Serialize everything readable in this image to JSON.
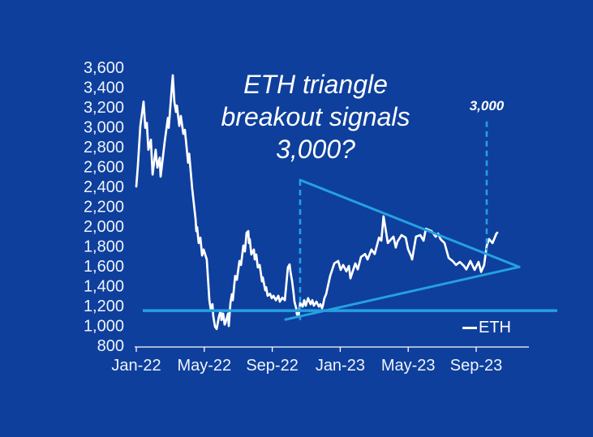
{
  "background_color": "#0E3F9C",
  "accent_color": "#25A0E2",
  "line_color": "#FFFFFF",
  "chart_data": {
    "type": "line",
    "title": "ETH triangle\nbreakout signals\n3,000?",
    "legend": [
      "ETH"
    ],
    "annotations": [
      {
        "label": "3,000",
        "value": 3000,
        "month": 20.62
      }
    ],
    "x_unit": "months since Jan-2022",
    "ylim": [
      800,
      3600
    ],
    "grid": false,
    "legend_position": "bottom-right",
    "x_ticks": [
      {
        "label": "Jan-22",
        "m": 0
      },
      {
        "label": "May-22",
        "m": 4
      },
      {
        "label": "Sep-22",
        "m": 8
      },
      {
        "label": "Jan-23",
        "m": 12
      },
      {
        "label": "May-23",
        "m": 16
      },
      {
        "label": "Sep-23",
        "m": 20
      }
    ],
    "y_ticks": [
      "3,600",
      "3,400",
      "3,200",
      "3,000",
      "2,800",
      "2,600",
      "2,400",
      "2,200",
      "2,000",
      "1,800",
      "1,600",
      "1,400",
      "1,200",
      "1,000",
      "800"
    ],
    "series": [
      {
        "name": "ETH",
        "color": "#FFFFFF",
        "points": [
          [
            0,
            2400
          ],
          [
            0.09,
            2600
          ],
          [
            0.24,
            3010
          ],
          [
            0.43,
            3255
          ],
          [
            0.53,
            2990
          ],
          [
            0.62,
            3040
          ],
          [
            0.71,
            2770
          ],
          [
            0.86,
            2870
          ],
          [
            0.96,
            2520
          ],
          [
            1.14,
            2770
          ],
          [
            1.24,
            2590
          ],
          [
            1.38,
            2690
          ],
          [
            1.43,
            2500
          ],
          [
            1.67,
            2850
          ],
          [
            1.86,
            3090
          ],
          [
            1.91,
            2990
          ],
          [
            2.1,
            3420
          ],
          [
            2.15,
            3520
          ],
          [
            2.24,
            3255
          ],
          [
            2.34,
            3150
          ],
          [
            2.39,
            3215
          ],
          [
            2.53,
            3010
          ],
          [
            2.62,
            3110
          ],
          [
            2.77,
            2930
          ],
          [
            2.86,
            2970
          ],
          [
            3.05,
            2640
          ],
          [
            3.11,
            2730
          ],
          [
            3.29,
            2380
          ],
          [
            3.49,
            2070
          ],
          [
            3.53,
            1950
          ],
          [
            3.58,
            1990
          ],
          [
            3.67,
            1830
          ],
          [
            3.77,
            1885
          ],
          [
            3.87,
            1705
          ],
          [
            3.96,
            1765
          ],
          [
            4.15,
            1665
          ],
          [
            4.3,
            1255
          ],
          [
            4.39,
            1150
          ],
          [
            4.48,
            1215
          ],
          [
            4.53,
            1095
          ],
          [
            4.63,
            990
          ],
          [
            4.73,
            965
          ],
          [
            4.87,
            1095
          ],
          [
            4.97,
            1150
          ],
          [
            5.01,
            1055
          ],
          [
            5.11,
            1120
          ],
          [
            5.2,
            1010
          ],
          [
            5.25,
            1030
          ],
          [
            5.4,
            1120
          ],
          [
            5.44,
            995
          ],
          [
            5.54,
            1230
          ],
          [
            5.63,
            1315
          ],
          [
            5.68,
            1255
          ],
          [
            5.82,
            1500
          ],
          [
            5.92,
            1460
          ],
          [
            6.07,
            1650
          ],
          [
            6.16,
            1610
          ],
          [
            6.3,
            1805
          ],
          [
            6.39,
            1745
          ],
          [
            6.49,
            1935
          ],
          [
            6.59,
            1950
          ],
          [
            6.63,
            1830
          ],
          [
            6.68,
            1870
          ],
          [
            6.77,
            1715
          ],
          [
            6.92,
            1765
          ],
          [
            6.97,
            1665
          ],
          [
            7.06,
            1715
          ],
          [
            7.15,
            1585
          ],
          [
            7.26,
            1610
          ],
          [
            7.4,
            1445
          ],
          [
            7.44,
            1485
          ],
          [
            7.59,
            1355
          ],
          [
            7.64,
            1385
          ],
          [
            7.73,
            1300
          ],
          [
            7.87,
            1320
          ],
          [
            7.97,
            1275
          ],
          [
            8.07,
            1300
          ],
          [
            8.21,
            1255
          ],
          [
            8.36,
            1300
          ],
          [
            8.45,
            1240
          ],
          [
            8.59,
            1280
          ],
          [
            8.74,
            1255
          ],
          [
            8.83,
            1420
          ],
          [
            8.92,
            1585
          ],
          [
            9.02,
            1615
          ],
          [
            9.07,
            1545
          ],
          [
            9.17,
            1445
          ],
          [
            9.26,
            1320
          ],
          [
            9.31,
            1240
          ],
          [
            9.41,
            1175
          ],
          [
            9.45,
            1110
          ],
          [
            9.5,
            1150
          ],
          [
            9.55,
            1095
          ],
          [
            9.64,
            1230
          ],
          [
            9.79,
            1190
          ],
          [
            9.88,
            1255
          ],
          [
            9.97,
            1200
          ],
          [
            10.11,
            1275
          ],
          [
            10.26,
            1215
          ],
          [
            10.36,
            1255
          ],
          [
            10.45,
            1200
          ],
          [
            10.6,
            1240
          ],
          [
            10.74,
            1190
          ],
          [
            10.83,
            1215
          ],
          [
            10.93,
            1175
          ],
          [
            10.98,
            1200
          ],
          [
            11.07,
            1275
          ],
          [
            11.17,
            1315
          ],
          [
            11.41,
            1500
          ],
          [
            11.65,
            1625
          ],
          [
            11.88,
            1650
          ],
          [
            12.03,
            1560
          ],
          [
            12.17,
            1610
          ],
          [
            12.36,
            1545
          ],
          [
            12.51,
            1600
          ],
          [
            12.6,
            1475
          ],
          [
            12.89,
            1625
          ],
          [
            13.03,
            1565
          ],
          [
            13.22,
            1690
          ],
          [
            13.46,
            1720
          ],
          [
            13.61,
            1665
          ],
          [
            13.84,
            1765
          ],
          [
            14.03,
            1720
          ],
          [
            14.28,
            1885
          ],
          [
            14.42,
            1855
          ],
          [
            14.55,
            2100
          ],
          [
            14.8,
            1830
          ],
          [
            15,
            1870
          ],
          [
            15.13,
            1895
          ],
          [
            15.27,
            1785
          ],
          [
            15.37,
            1845
          ],
          [
            15.61,
            1910
          ],
          [
            15.85,
            1885
          ],
          [
            15.99,
            1770
          ],
          [
            16.19,
            1690
          ],
          [
            16.23,
            1665
          ],
          [
            16.46,
            1895
          ],
          [
            16.71,
            1910
          ],
          [
            16.9,
            1855
          ],
          [
            17.04,
            1975
          ],
          [
            17.38,
            1950
          ],
          [
            17.62,
            1895
          ],
          [
            17.76,
            1925
          ],
          [
            17.9,
            1870
          ],
          [
            18.14,
            1830
          ],
          [
            18.38,
            1680
          ],
          [
            18.61,
            1650
          ],
          [
            18.81,
            1610
          ],
          [
            19.04,
            1640
          ],
          [
            19.28,
            1600
          ],
          [
            19.42,
            1565
          ],
          [
            19.66,
            1650
          ],
          [
            19.91,
            1560
          ],
          [
            20.14,
            1640
          ],
          [
            20.29,
            1540
          ],
          [
            20.47,
            1610
          ],
          [
            20.62,
            1805
          ],
          [
            20.76,
            1870
          ],
          [
            20.96,
            1830
          ],
          [
            21.19,
            1925
          ],
          [
            21.24,
            1935
          ]
        ]
      }
    ],
    "overlays": {
      "support_line": {
        "value": 1150,
        "from_m": 0.38,
        "to_m": 24.77
      },
      "trendlines": [
        {
          "name": "descending-resistance",
          "from": [
            9.64,
            2465
          ],
          "to": [
            22.53,
            1590
          ]
        },
        {
          "name": "ascending-support",
          "from": [
            8.78,
            1060
          ],
          "to": [
            22.53,
            1590
          ]
        }
      ],
      "projection_dashes": [
        {
          "m": 9.64,
          "from_value": 2465,
          "to_value": 1055
        },
        {
          "m": 20.62,
          "from_value": 3055,
          "to_value": 1755
        }
      ]
    }
  }
}
